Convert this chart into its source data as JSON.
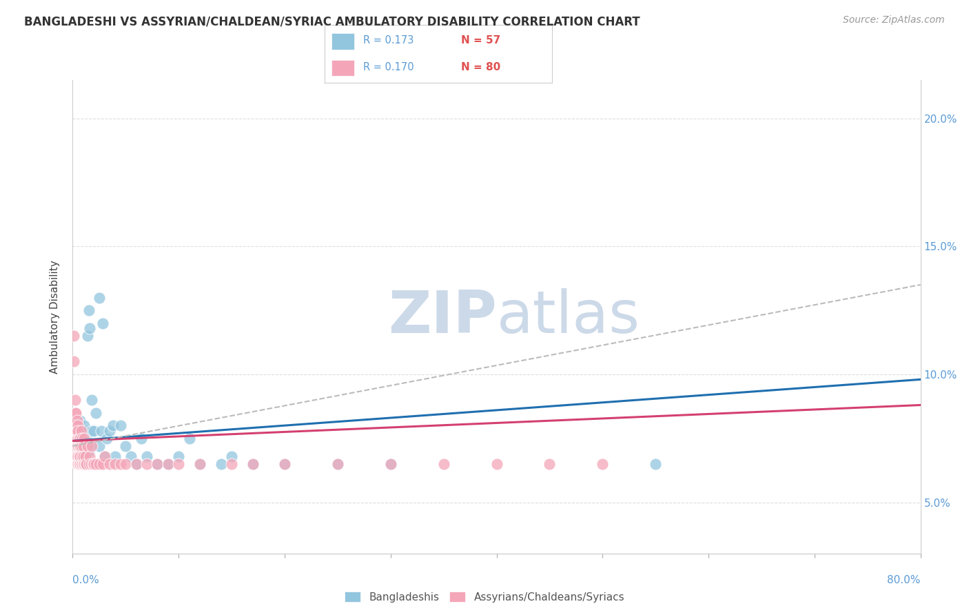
{
  "title": "BANGLADESHI VS ASSYRIAN/CHALDEAN/SYRIAC AMBULATORY DISABILITY CORRELATION CHART",
  "source": "Source: ZipAtlas.com",
  "ylabel": "Ambulatory Disability",
  "legend1_r": "0.173",
  "legend1_n": "57",
  "legend2_r": "0.170",
  "legend2_n": "80",
  "color_blue": "#92c5de",
  "color_pink": "#f4a6b8",
  "color_trendline_blue": "#1f6faf",
  "color_trendline_pink": "#d44070",
  "color_trendline_grey": "#bbbbbb",
  "background_color": "#ffffff",
  "watermark_color": "#ccd9e8",
  "xlim": [
    0.0,
    0.8
  ],
  "ylim": [
    0.03,
    0.215
  ],
  "yticks": [
    0.05,
    0.1,
    0.15,
    0.2
  ],
  "bang_x": [
    0.002,
    0.003,
    0.004,
    0.005,
    0.005,
    0.006,
    0.006,
    0.007,
    0.007,
    0.007,
    0.008,
    0.008,
    0.008,
    0.009,
    0.009,
    0.01,
    0.01,
    0.011,
    0.011,
    0.012,
    0.013,
    0.014,
    0.015,
    0.015,
    0.016,
    0.016,
    0.018,
    0.018,
    0.02,
    0.022,
    0.025,
    0.025,
    0.027,
    0.028,
    0.03,
    0.032,
    0.035,
    0.038,
    0.04,
    0.045,
    0.05,
    0.055,
    0.06,
    0.065,
    0.07,
    0.08,
    0.09,
    0.1,
    0.11,
    0.12,
    0.14,
    0.15,
    0.17,
    0.2,
    0.25,
    0.3,
    0.55
  ],
  "bang_y": [
    0.075,
    0.08,
    0.075,
    0.07,
    0.08,
    0.072,
    0.078,
    0.068,
    0.075,
    0.082,
    0.065,
    0.072,
    0.078,
    0.068,
    0.075,
    0.07,
    0.078,
    0.072,
    0.08,
    0.068,
    0.075,
    0.115,
    0.07,
    0.125,
    0.072,
    0.118,
    0.078,
    0.09,
    0.078,
    0.085,
    0.072,
    0.13,
    0.078,
    0.12,
    0.068,
    0.075,
    0.078,
    0.08,
    0.068,
    0.08,
    0.072,
    0.068,
    0.065,
    0.075,
    0.068,
    0.065,
    0.065,
    0.068,
    0.075,
    0.065,
    0.065,
    0.068,
    0.065,
    0.065,
    0.065,
    0.065,
    0.065
  ],
  "assy_x": [
    0.001,
    0.001,
    0.001,
    0.002,
    0.002,
    0.002,
    0.002,
    0.003,
    0.003,
    0.003,
    0.003,
    0.003,
    0.003,
    0.004,
    0.004,
    0.004,
    0.004,
    0.004,
    0.004,
    0.004,
    0.005,
    0.005,
    0.005,
    0.005,
    0.005,
    0.005,
    0.005,
    0.006,
    0.006,
    0.006,
    0.006,
    0.006,
    0.007,
    0.007,
    0.007,
    0.007,
    0.008,
    0.008,
    0.008,
    0.009,
    0.009,
    0.009,
    0.01,
    0.01,
    0.01,
    0.011,
    0.011,
    0.012,
    0.012,
    0.013,
    0.014,
    0.015,
    0.016,
    0.017,
    0.018,
    0.019,
    0.02,
    0.022,
    0.025,
    0.028,
    0.03,
    0.035,
    0.04,
    0.045,
    0.05,
    0.06,
    0.07,
    0.08,
    0.09,
    0.1,
    0.12,
    0.15,
    0.17,
    0.2,
    0.25,
    0.3,
    0.35,
    0.4,
    0.45,
    0.5
  ],
  "assy_y": [
    0.105,
    0.08,
    0.115,
    0.075,
    0.085,
    0.09,
    0.07,
    0.075,
    0.068,
    0.08,
    0.072,
    0.085,
    0.078,
    0.065,
    0.072,
    0.078,
    0.068,
    0.075,
    0.082,
    0.065,
    0.068,
    0.072,
    0.075,
    0.065,
    0.08,
    0.065,
    0.078,
    0.065,
    0.072,
    0.068,
    0.075,
    0.065,
    0.065,
    0.072,
    0.068,
    0.075,
    0.065,
    0.072,
    0.078,
    0.065,
    0.068,
    0.075,
    0.065,
    0.072,
    0.068,
    0.065,
    0.075,
    0.065,
    0.068,
    0.065,
    0.072,
    0.065,
    0.068,
    0.065,
    0.072,
    0.065,
    0.065,
    0.065,
    0.065,
    0.065,
    0.068,
    0.065,
    0.065,
    0.065,
    0.065,
    0.065,
    0.065,
    0.065,
    0.065,
    0.065,
    0.065,
    0.065,
    0.065,
    0.065,
    0.065,
    0.065,
    0.065,
    0.065,
    0.065,
    0.065
  ],
  "bang_trend_x0": 0.0,
  "bang_trend_y0": 0.074,
  "bang_trend_x1": 0.8,
  "bang_trend_y1": 0.098,
  "assy_trend_x0": 0.0,
  "assy_trend_y0": 0.074,
  "assy_trend_x1": 0.8,
  "assy_trend_y1": 0.088,
  "grey_trend_x0": 0.0,
  "grey_trend_y0": 0.072,
  "grey_trend_x1": 0.8,
  "grey_trend_y1": 0.135
}
